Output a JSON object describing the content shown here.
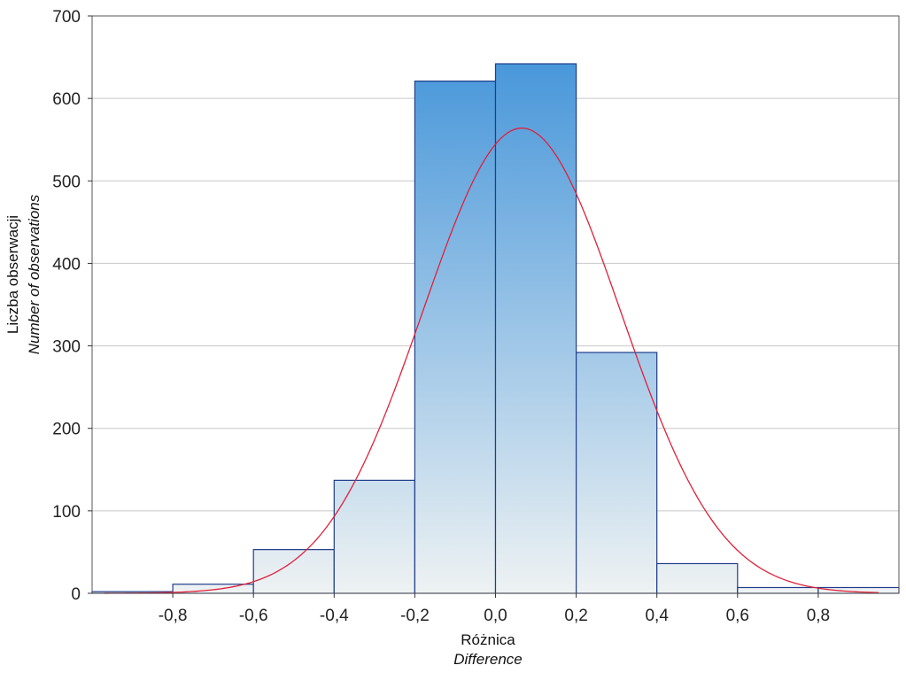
{
  "chart_data": {
    "type": "bar",
    "subtype": "histogram",
    "title": "",
    "xlabel": "Różnica",
    "xlabel_en": "Difference",
    "ylabel": "Liczba obserwacji",
    "ylabel_en": "Number of observations",
    "bins": [
      {
        "x0": -1.0,
        "x1": -0.8,
        "value": 2
      },
      {
        "x0": -0.8,
        "x1": -0.6,
        "value": 11
      },
      {
        "x0": -0.6,
        "x1": -0.4,
        "value": 53
      },
      {
        "x0": -0.4,
        "x1": -0.2,
        "value": 137
      },
      {
        "x0": -0.2,
        "x1": 0.0,
        "value": 621
      },
      {
        "x0": 0.0,
        "x1": 0.2,
        "value": 642
      },
      {
        "x0": 0.2,
        "x1": 0.4,
        "value": 292
      },
      {
        "x0": 0.4,
        "x1": 0.6,
        "value": 36
      },
      {
        "x0": 0.6,
        "x1": 0.8,
        "value": 7
      },
      {
        "x0": 0.8,
        "x1": 1.0,
        "value": 7
      }
    ],
    "xlim": [
      -1.0,
      1.0
    ],
    "ylim": [
      0,
      700
    ],
    "x_ticks": [
      -0.8,
      -0.6,
      -0.4,
      -0.2,
      0.0,
      0.2,
      0.4,
      0.6,
      0.8
    ],
    "x_tick_labels": [
      "-0,8",
      "-0,6",
      "-0,4",
      "-0,2",
      "0,0",
      "0,2",
      "0,4",
      "0,6",
      "0,8"
    ],
    "y_ticks": [
      0,
      100,
      200,
      300,
      400,
      500,
      600,
      700
    ],
    "y_tick_labels": [
      "0",
      "100",
      "200",
      "300",
      "400",
      "500",
      "600",
      "700"
    ],
    "grid": "horizontal",
    "fitted_curve": {
      "type": "normal",
      "mean": 0.065,
      "peak": 564,
      "sd": 0.245
    },
    "colors": {
      "bar_top": "#3a8fd8",
      "bar_bottom": "#eef2f3",
      "bar_edge": "#1f3d8a",
      "curve": "#e0203a",
      "grid": "#c8c8c8"
    }
  }
}
